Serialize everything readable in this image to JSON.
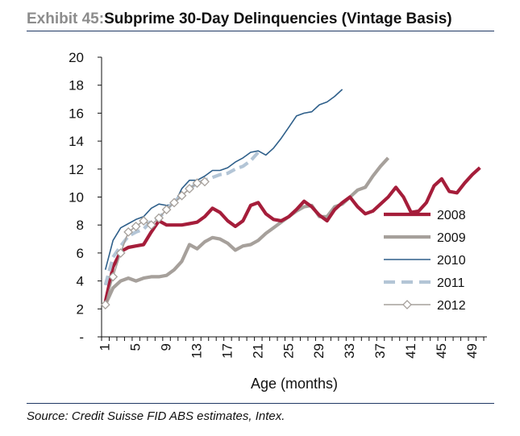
{
  "title": {
    "exhibit": "Exhibit 45:",
    "text": "Subprime 30-Day Delinquencies (Vintage Basis)"
  },
  "source": "Source: Credit Suisse FID ABS estimates, Intex.",
  "colors": {
    "2008": "#a51d3a",
    "2009": "#a6a09b",
    "2010": "#2e5f8a",
    "2011": "#b3c5d6",
    "2012": "#a6a09b",
    "rule": "#1f3864"
  },
  "chart_data": {
    "type": "line",
    "xlabel": "Age (months)",
    "ylabel": "",
    "x_ticks": [
      "1",
      "5",
      "9",
      "13",
      "17",
      "21",
      "25",
      "29",
      "33",
      "37",
      "41",
      "45",
      "49"
    ],
    "y_ticks": [
      "-",
      "2",
      "4",
      "6",
      "8",
      "10",
      "12",
      "14",
      "16",
      "18",
      "20"
    ],
    "xlim": [
      1,
      50
    ],
    "ylim": [
      0,
      20
    ],
    "grid": false,
    "legend": "right-middle",
    "series": [
      {
        "name": "2008",
        "style": "thick-solid",
        "color": "#a51d3a",
        "values": [
          2.5,
          5.0,
          6.1,
          6.4,
          6.5,
          6.6,
          7.5,
          8.3,
          8.0,
          8.0,
          8.0,
          8.1,
          8.2,
          8.6,
          9.2,
          8.9,
          8.3,
          7.9,
          8.3,
          9.4,
          9.6,
          8.8,
          8.4,
          8.3,
          8.6,
          9.1,
          9.7,
          9.3,
          8.7,
          8.3,
          9.1,
          9.6,
          10.0,
          9.3,
          8.8,
          9.0,
          9.5,
          10.0,
          10.7,
          10.0,
          8.9,
          9.0,
          9.6,
          10.8,
          11.3,
          10.4,
          10.3,
          11.0,
          11.6,
          12.1
        ]
      },
      {
        "name": "2009",
        "style": "thick-solid",
        "color": "#a6a09b",
        "values": [
          2.3,
          3.5,
          4.0,
          4.2,
          4.0,
          4.2,
          4.3,
          4.3,
          4.4,
          4.8,
          5.4,
          6.6,
          6.3,
          6.8,
          7.1,
          7.0,
          6.7,
          6.2,
          6.5,
          6.6,
          6.9,
          7.4,
          7.8,
          8.2,
          8.6,
          9.0,
          9.3,
          9.4,
          8.6,
          8.6,
          9.3,
          9.5,
          10.0,
          10.5,
          10.7,
          11.5,
          12.2,
          12.8
        ]
      },
      {
        "name": "2010",
        "style": "thin-solid",
        "color": "#2e5f8a",
        "values": [
          4.8,
          6.9,
          7.8,
          8.1,
          8.4,
          8.6,
          9.2,
          9.5,
          9.4,
          9.5,
          10.6,
          11.2,
          11.2,
          11.5,
          11.9,
          11.9,
          12.1,
          12.5,
          12.8,
          13.2,
          13.3,
          13.0,
          13.5,
          14.2,
          15.0,
          15.8,
          16.0,
          16.1,
          16.6,
          16.8,
          17.2,
          17.7
        ]
      },
      {
        "name": "2011",
        "style": "thick-dashed",
        "color": "#b3c5d6",
        "values": [
          3.7,
          5.7,
          6.5,
          7.2,
          7.5,
          7.7,
          8.3,
          8.5,
          9.1,
          9.7,
          10.1,
          10.6,
          11.0,
          11.2,
          11.4,
          11.6,
          11.7,
          12.0,
          12.2,
          12.6,
          13.2
        ]
      },
      {
        "name": "2012",
        "style": "thin-solid-diamond",
        "color": "#a6a09b",
        "values": [
          2.3,
          4.3,
          6.0,
          7.5,
          7.9,
          8.3,
          8.0,
          8.5,
          9.1,
          9.6,
          10.1,
          10.6,
          11.0,
          11.1
        ]
      }
    ]
  }
}
